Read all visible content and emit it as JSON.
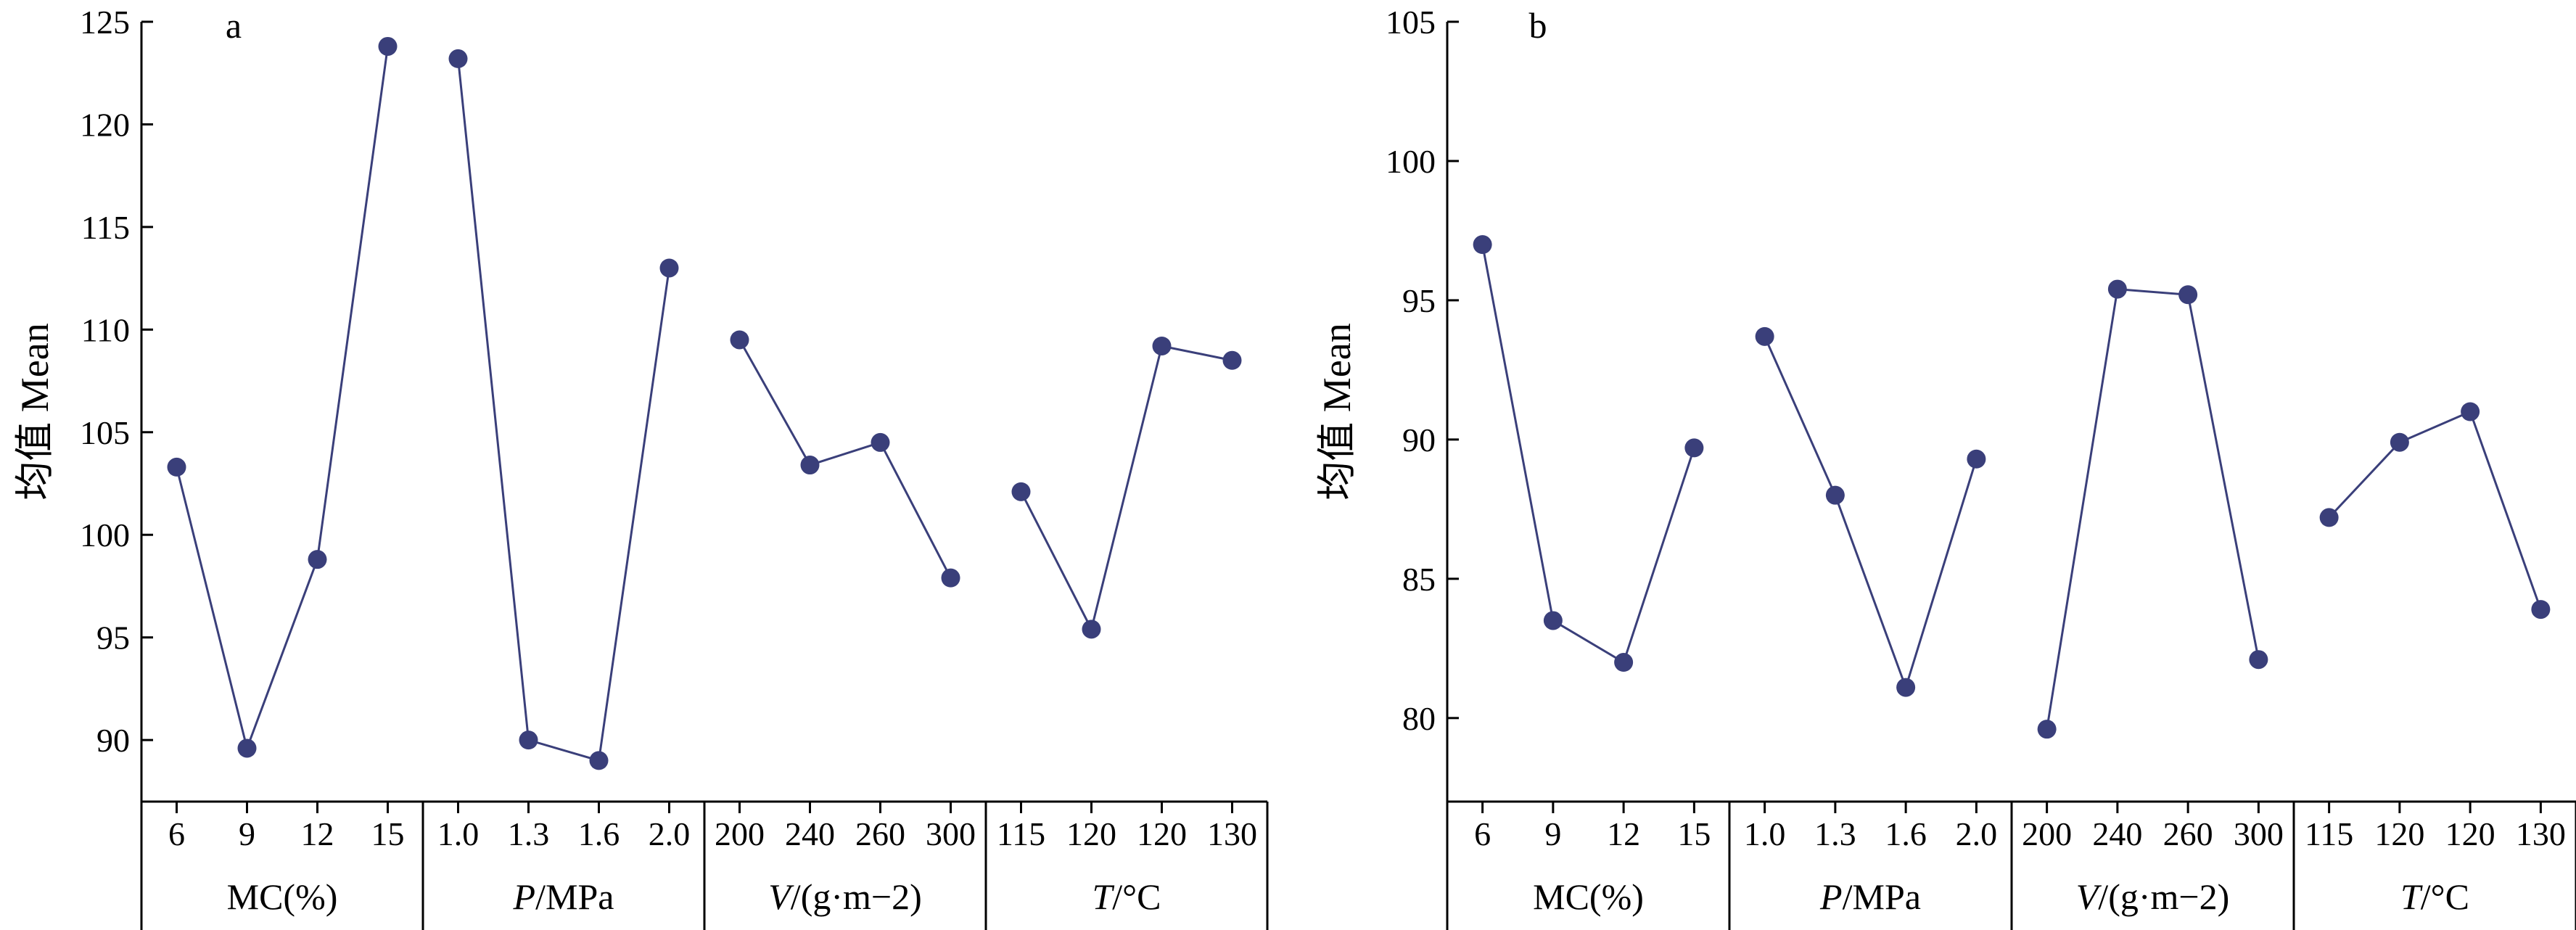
{
  "chart_data": [
    {
      "type": "line",
      "panel": "a",
      "ylabel": "均值 Mean",
      "ylim": [
        87,
        125
      ],
      "yticks": [
        90,
        95,
        100,
        105,
        110,
        115,
        120,
        125
      ],
      "legend": "none",
      "grid": false,
      "groups": [
        {
          "label": "MC(%)",
          "label_prefix": "",
          "label_italic": "",
          "label_suffix": "MC(%)",
          "categories": [
            "6",
            "9",
            "12",
            "15"
          ],
          "values": [
            103.3,
            89.6,
            98.8,
            123.8
          ]
        },
        {
          "label": "P/MPa",
          "label_prefix": "",
          "label_italic": "P",
          "label_suffix": "/MPa",
          "categories": [
            "1.0",
            "1.3",
            "1.6",
            "2.0"
          ],
          "values": [
            123.2,
            90.0,
            89.0,
            113.0
          ]
        },
        {
          "label": "V/(g·m−2)",
          "label_prefix": "",
          "label_italic": "V",
          "label_suffix": "/(g·m−2)",
          "categories": [
            "200",
            "240",
            "260",
            "300"
          ],
          "values": [
            109.5,
            103.4,
            104.5,
            97.9
          ]
        },
        {
          "label": "T/°C",
          "label_prefix": "",
          "label_italic": "T",
          "label_suffix": "/°C",
          "categories": [
            "115",
            "120",
            "120",
            "130"
          ],
          "values": [
            102.1,
            95.4,
            109.2,
            108.5
          ]
        }
      ]
    },
    {
      "type": "line",
      "panel": "b",
      "ylabel": "均值 Mean",
      "ylim": [
        77,
        105
      ],
      "yticks": [
        80,
        85,
        90,
        95,
        100,
        105
      ],
      "legend": "none",
      "grid": false,
      "groups": [
        {
          "label": "MC(%)",
          "label_prefix": "",
          "label_italic": "",
          "label_suffix": "MC(%)",
          "categories": [
            "6",
            "9",
            "12",
            "15"
          ],
          "values": [
            97.0,
            83.5,
            82.0,
            89.7
          ]
        },
        {
          "label": "P/MPa",
          "label_prefix": "",
          "label_italic": "P",
          "label_suffix": "/MPa",
          "categories": [
            "1.0",
            "1.3",
            "1.6",
            "2.0"
          ],
          "values": [
            93.7,
            88.0,
            81.1,
            89.3
          ]
        },
        {
          "label": "V/(g·m−2)",
          "label_prefix": "",
          "label_italic": "V",
          "label_suffix": "/(g·m−2)",
          "categories": [
            "200",
            "240",
            "260",
            "300"
          ],
          "values": [
            79.6,
            95.4,
            95.2,
            82.1
          ]
        },
        {
          "label": "T/°C",
          "label_prefix": "",
          "label_italic": "T",
          "label_suffix": "/°C",
          "categories": [
            "115",
            "120",
            "120",
            "130"
          ],
          "values": [
            87.2,
            89.9,
            91.0,
            83.9
          ]
        }
      ]
    }
  ]
}
